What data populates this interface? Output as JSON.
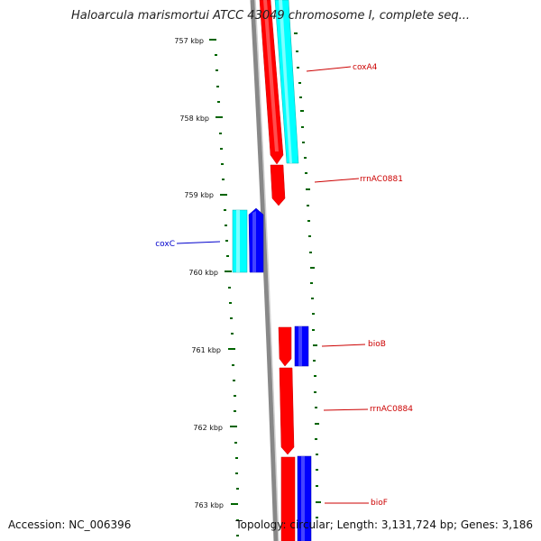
{
  "map": {
    "title": "Haloarcula marismortui ATCC 43049 chromosome I, complete seq...",
    "accession": "Accession: NC_006396",
    "summary": "Topology: circular; Length: 3,131,724 bp; Genes: 3,186"
  },
  "colors": {
    "backbone": "#888888",
    "forward_strand": "#ff0000",
    "forward_strand_rna": "#00ffff",
    "reverse_strand": "#0000ff",
    "reverse_strand_rna": "#00ffff",
    "ticks": "#006400",
    "label_forward": "#cc0000",
    "label_reverse": "#0000cc"
  },
  "scale": {
    "unit": "kbp",
    "ticks": [
      {
        "kbp": 757,
        "label": "757 kbp"
      },
      {
        "kbp": 758,
        "label": "758 kbp"
      },
      {
        "kbp": 759,
        "label": "759 kbp"
      },
      {
        "kbp": 760,
        "label": "760 kbp"
      },
      {
        "kbp": 761,
        "label": "761 kbp"
      },
      {
        "kbp": 762,
        "label": "762 kbp"
      },
      {
        "kbp": 763,
        "label": "763 kbp"
      }
    ]
  },
  "features": [
    {
      "name": "coxA4",
      "strand": "forward",
      "labeled": true
    },
    {
      "name": "rrnAC0881",
      "strand": "forward",
      "labeled": true
    },
    {
      "name": "coxC",
      "strand": "reverse",
      "labeled": true
    },
    {
      "name": "bioB",
      "strand": "forward",
      "labeled": true
    },
    {
      "name": "rrnAC0884",
      "strand": "forward",
      "labeled": true
    },
    {
      "name": "bioF",
      "strand": "forward",
      "labeled": true
    }
  ]
}
